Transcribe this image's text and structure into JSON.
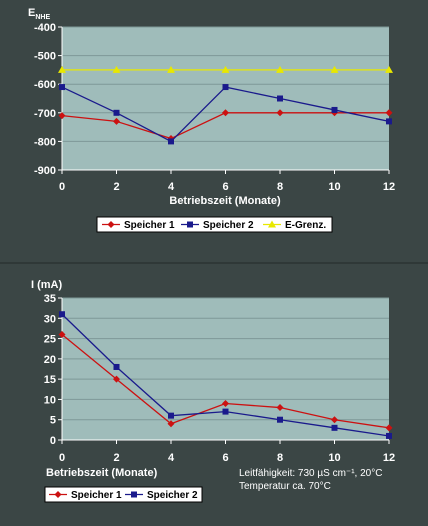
{
  "colors": {
    "background": "#3b4645",
    "plot_area": "#9fbcba",
    "gridline": "#7e9897",
    "series1": "#cc1111",
    "series2": "#1a1a8c",
    "series3": "#e8e800"
  },
  "chart_data": [
    {
      "type": "line",
      "ylabel": "E",
      "ylabel_sub": "NHE",
      "xlabel": "Betriebszeit (Monate)",
      "x": [
        0,
        2,
        4,
        6,
        8,
        10,
        12
      ],
      "xticks": [
        "0",
        "2",
        "4",
        "6",
        "8",
        "10",
        "12"
      ],
      "ylim": [
        -900,
        -400
      ],
      "yticks": [
        "-400",
        "-500",
        "-600",
        "-700",
        "-800",
        "-900"
      ],
      "grid": true,
      "legend_position": "bottom",
      "series": [
        {
          "name": "Speicher 1",
          "values": [
            -710,
            -730,
            -790,
            -700,
            -700,
            -700,
            -700
          ],
          "color": "#cc1111",
          "marker": "diamond"
        },
        {
          "name": "Speicher 2",
          "values": [
            -610,
            -700,
            -800,
            -610,
            -650,
            -690,
            -730
          ],
          "color": "#1a1a8c",
          "marker": "square"
        },
        {
          "name": "E-Grenz.",
          "values": [
            -550,
            -550,
            -550,
            -550,
            -550,
            -550,
            -550
          ],
          "color": "#e8e800",
          "marker": "triangle"
        }
      ]
    },
    {
      "type": "line",
      "ylabel": "I (mA)",
      "xlabel": "Betriebszeit (Monate)",
      "x": [
        0,
        2,
        4,
        6,
        8,
        10,
        12
      ],
      "xticks": [
        "0",
        "2",
        "4",
        "6",
        "8",
        "10",
        "12"
      ],
      "ylim": [
        0,
        35
      ],
      "yticks": [
        "35",
        "30",
        "25",
        "20",
        "15",
        "10",
        "5",
        "0"
      ],
      "grid": true,
      "legend_position": "bottom-left",
      "annotation_lines": [
        "Leitfähigkeit: 730 µS cm⁻¹, 20°C",
        "Temperatur ca. 70°C"
      ],
      "series": [
        {
          "name": "Speicher 1",
          "values": [
            26,
            15,
            4,
            9,
            8,
            5,
            3
          ],
          "color": "#cc1111",
          "marker": "diamond"
        },
        {
          "name": "Speicher 2",
          "values": [
            31,
            18,
            6,
            7,
            5,
            3,
            1
          ],
          "color": "#1a1a8c",
          "marker": "square"
        }
      ]
    }
  ]
}
